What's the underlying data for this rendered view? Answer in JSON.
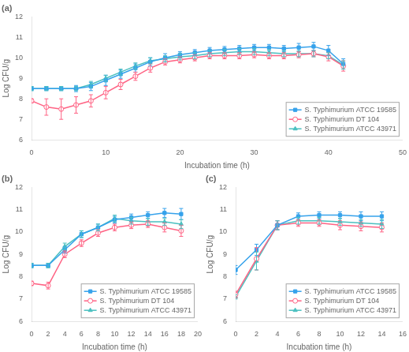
{
  "chart_data": [
    {
      "type": "line",
      "title": "(a)",
      "xlabel": "Incubation time (h)",
      "ylabel": "Log CFU/g",
      "xlim": [
        0,
        50
      ],
      "ylim": [
        6,
        12
      ],
      "xticks": [
        0,
        10,
        20,
        30,
        40,
        50
      ],
      "yticks": [
        6,
        7,
        8,
        9,
        10,
        11,
        12
      ],
      "grid": false,
      "legend": "lower right",
      "x": [
        0,
        2,
        4,
        6,
        8,
        10,
        12,
        14,
        16,
        18,
        20,
        22,
        24,
        26,
        28,
        30,
        32,
        34,
        36,
        38,
        40,
        42
      ],
      "series": [
        {
          "name": "S. Typhimurium ATCC 19585",
          "marker": "square",
          "values": [
            8.5,
            8.5,
            8.5,
            8.5,
            8.6,
            8.9,
            9.2,
            9.5,
            9.8,
            10.0,
            10.15,
            10.25,
            10.35,
            10.4,
            10.45,
            10.5,
            10.5,
            10.45,
            10.5,
            10.55,
            10.35,
            9.7
          ],
          "yerr": [
            0.1,
            0.1,
            0.1,
            0.15,
            0.2,
            0.25,
            0.2,
            0.2,
            0.2,
            0.2,
            0.15,
            0.15,
            0.15,
            0.15,
            0.15,
            0.15,
            0.15,
            0.15,
            0.2,
            0.2,
            0.25,
            0.25
          ]
        },
        {
          "name": "S. Typhimurium DT 104",
          "marker": "circle-open",
          "values": [
            7.9,
            7.6,
            7.5,
            7.7,
            7.9,
            8.3,
            8.7,
            9.1,
            9.5,
            9.8,
            9.9,
            10.0,
            10.1,
            10.1,
            10.1,
            10.15,
            10.1,
            10.1,
            10.15,
            10.2,
            10.05,
            9.6
          ],
          "yerr": [
            0.1,
            0.4,
            0.5,
            0.4,
            0.3,
            0.3,
            0.25,
            0.2,
            0.2,
            0.15,
            0.15,
            0.15,
            0.15,
            0.15,
            0.15,
            0.15,
            0.15,
            0.15,
            0.15,
            0.15,
            0.2,
            0.25
          ]
        },
        {
          "name": "S. Typhimurium ATCC 43971",
          "marker": "triangle",
          "values": [
            8.5,
            8.5,
            8.5,
            8.5,
            8.7,
            9.0,
            9.3,
            9.6,
            9.85,
            9.95,
            10.05,
            10.1,
            10.2,
            10.25,
            10.3,
            10.3,
            10.25,
            10.2,
            10.2,
            10.2,
            10.1,
            9.65
          ],
          "yerr": [
            0.1,
            0.1,
            0.1,
            0.1,
            0.15,
            0.15,
            0.15,
            0.15,
            0.15,
            0.15,
            0.15,
            0.15,
            0.15,
            0.15,
            0.15,
            0.15,
            0.15,
            0.15,
            0.15,
            0.15,
            0.15,
            0.2
          ]
        }
      ]
    },
    {
      "type": "line",
      "title": "(b)",
      "xlabel": "Incubation time (h)",
      "ylabel": "Log CFU/g",
      "xlim": [
        0,
        20
      ],
      "ylim": [
        6,
        12
      ],
      "xticks": [
        0,
        2,
        4,
        6,
        8,
        10,
        12,
        14,
        16,
        18,
        20
      ],
      "yticks": [
        6,
        7,
        8,
        9,
        10,
        11,
        12
      ],
      "grid": false,
      "legend": "lower right",
      "x": [
        0,
        2,
        4,
        6,
        8,
        10,
        12,
        14,
        16,
        18
      ],
      "series": [
        {
          "name": "S. Typhimurium ATCC 19585",
          "marker": "square",
          "values": [
            8.5,
            8.5,
            9.2,
            9.9,
            10.2,
            10.55,
            10.65,
            10.75,
            10.85,
            10.8
          ],
          "yerr": [
            0.1,
            0.1,
            0.15,
            0.15,
            0.15,
            0.15,
            0.15,
            0.15,
            0.2,
            0.25
          ]
        },
        {
          "name": "S. Typhimurium DT 104",
          "marker": "circle-open",
          "values": [
            7.7,
            7.6,
            9.0,
            9.5,
            9.95,
            10.2,
            10.3,
            10.35,
            10.2,
            10.05
          ],
          "yerr": [
            0.1,
            0.15,
            0.15,
            0.15,
            0.15,
            0.15,
            0.15,
            0.15,
            0.2,
            0.25
          ]
        },
        {
          "name": "S. Typhimurium ATCC 43971",
          "marker": "triangle",
          "values": [
            8.5,
            8.5,
            9.35,
            9.9,
            10.2,
            10.6,
            10.5,
            10.45,
            10.45,
            10.35
          ],
          "yerr": [
            0.1,
            0.1,
            0.15,
            0.15,
            0.15,
            0.15,
            0.15,
            0.15,
            0.15,
            0.2
          ]
        }
      ]
    },
    {
      "type": "line",
      "title": "(c)",
      "xlabel": "Incubation time (h)",
      "ylabel": "Log CFU/g",
      "xlim": [
        0,
        16
      ],
      "ylim": [
        6,
        12
      ],
      "xticks": [
        0,
        2,
        4,
        6,
        8,
        10,
        12,
        14,
        16
      ],
      "yticks": [
        6,
        7,
        8,
        9,
        10,
        11,
        12
      ],
      "grid": false,
      "legend": "lower right",
      "x": [
        0,
        2,
        4,
        6,
        8,
        10,
        12,
        14
      ],
      "series": [
        {
          "name": "S. Typhimurium ATCC 19585",
          "marker": "square",
          "values": [
            8.3,
            9.2,
            10.3,
            10.7,
            10.75,
            10.75,
            10.7,
            10.7
          ],
          "yerr": [
            0.2,
            0.25,
            0.2,
            0.15,
            0.15,
            0.15,
            0.2,
            0.2
          ]
        },
        {
          "name": "S. Typhimurium DT 104",
          "marker": "circle-open",
          "values": [
            7.2,
            8.8,
            10.3,
            10.4,
            10.4,
            10.3,
            10.25,
            10.2
          ],
          "yerr": [
            0.15,
            0.5,
            0.2,
            0.15,
            0.15,
            0.2,
            0.2,
            0.2
          ]
        },
        {
          "name": "S. Typhimurium ATCC 43971",
          "marker": "triangle",
          "values": [
            7.1,
            8.7,
            10.3,
            10.5,
            10.5,
            10.45,
            10.4,
            10.35
          ],
          "yerr": [
            0.1,
            0.4,
            0.2,
            0.15,
            0.15,
            0.15,
            0.15,
            0.2
          ]
        }
      ]
    }
  ]
}
